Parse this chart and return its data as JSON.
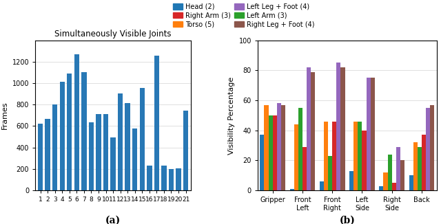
{
  "bar_values": [
    620,
    670,
    800,
    1015,
    1090,
    1270,
    1100,
    635,
    710,
    710,
    495,
    905,
    815,
    575,
    955,
    230,
    1260,
    230,
    200,
    205,
    745
  ],
  "bar_x": [
    1,
    2,
    3,
    4,
    5,
    6,
    7,
    8,
    9,
    10,
    11,
    12,
    13,
    14,
    15,
    16,
    17,
    18,
    19,
    20,
    21
  ],
  "bar_color": "#2878b5",
  "bar_title": "Simultaneously Visible Joints",
  "bar_ylabel": "Frames",
  "bar_ylim": [
    0,
    1400
  ],
  "bar_yticks": [
    0,
    200,
    400,
    600,
    800,
    1000,
    1200
  ],
  "sub_a_label": "(a)",
  "sub_b_label": "(b)",
  "positions": [
    "Gripper",
    "Front\nLeft",
    "Front\nRight",
    "Left\nSide",
    "Right\nSide",
    "Back"
  ],
  "series_order": [
    "Head (2)",
    "Torso (5)",
    "Left Arm (3)",
    "Right Arm (3)",
    "Left Leg + Foot (4)",
    "Right Leg + Foot (4)"
  ],
  "series": {
    "Head (2)": [
      37,
      1,
      6,
      13,
      3,
      10
    ],
    "Torso (5)": [
      57,
      44,
      46,
      46,
      12,
      32
    ],
    "Left Arm (3)": [
      50,
      55,
      23,
      46,
      24,
      29
    ],
    "Right Arm (3)": [
      50,
      29,
      46,
      40,
      5,
      37
    ],
    "Left Leg + Foot (4)": [
      58,
      82,
      85,
      75,
      29,
      55
    ],
    "Right Leg + Foot (4)": [
      57,
      79,
      82,
      75,
      20,
      57
    ]
  },
  "series_colors": {
    "Head (2)": "#1f77b4",
    "Torso (5)": "#ff7f0e",
    "Left Arm (3)": "#2ca02c",
    "Right Arm (3)": "#d62728",
    "Left Leg + Foot (4)": "#9467bd",
    "Right Leg + Foot (4)": "#8c564b"
  },
  "b_ylabel": "Visibility Percentage",
  "b_ylim": [
    0,
    100
  ],
  "b_yticks": [
    0,
    20,
    40,
    60,
    80,
    100
  ],
  "legend_order": [
    "Head (2)",
    "Right Arm (3)",
    "Torso (5)",
    "Left Leg + Foot (4)",
    "Left Arm (3)",
    "Right Leg + Foot (4)"
  ]
}
